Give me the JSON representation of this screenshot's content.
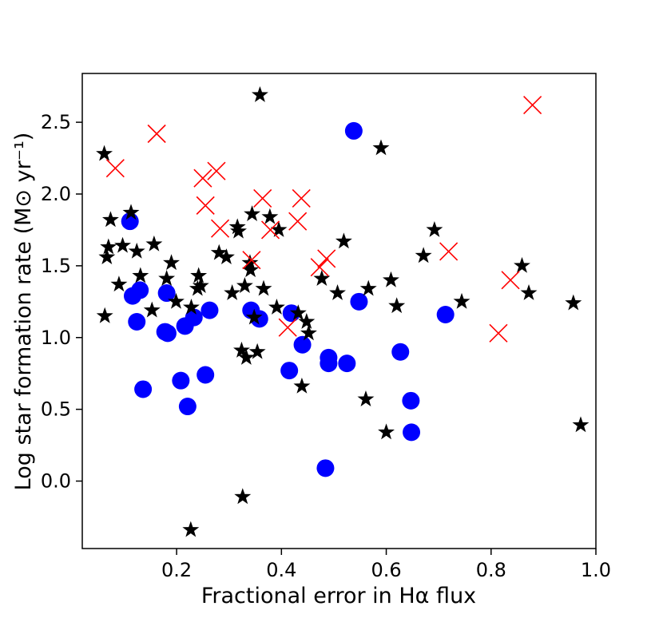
{
  "chart_data": {
    "type": "scatter",
    "xlabel": "Fractional error in Hα flux",
    "ylabel": "Log star formation rate (M⊙ yr⁻¹)",
    "xlim": [
      0.02,
      1.0
    ],
    "ylim": [
      -0.47,
      2.84
    ],
    "x_ticks": [
      0.2,
      0.4,
      0.6,
      0.8,
      1.0
    ],
    "x_tick_labels": [
      "0.2",
      "0.4",
      "0.6",
      "0.8",
      "1.0"
    ],
    "y_ticks": [
      0.0,
      0.5,
      1.0,
      1.5,
      2.0,
      2.5
    ],
    "y_tick_labels": [
      "0.0",
      "0.5",
      "1.0",
      "1.5",
      "2.0",
      "2.5"
    ],
    "grid": false,
    "legend": "none",
    "series": [
      {
        "marker": "circle",
        "color": "#0000ff",
        "points": [
          [
            0.111,
            1.81
          ],
          [
            0.116,
            1.29
          ],
          [
            0.124,
            1.11
          ],
          [
            0.13,
            1.33
          ],
          [
            0.136,
            0.64
          ],
          [
            0.178,
            1.04
          ],
          [
            0.181,
            1.31
          ],
          [
            0.183,
            1.03
          ],
          [
            0.208,
            0.7
          ],
          [
            0.216,
            1.08
          ],
          [
            0.221,
            0.52
          ],
          [
            0.233,
            1.14
          ],
          [
            0.255,
            0.74
          ],
          [
            0.263,
            1.19
          ],
          [
            0.342,
            1.19
          ],
          [
            0.358,
            1.13
          ],
          [
            0.415,
            0.77
          ],
          [
            0.419,
            1.17
          ],
          [
            0.44,
            0.95
          ],
          [
            0.484,
            0.09
          ],
          [
            0.49,
            0.86
          ],
          [
            0.49,
            0.82
          ],
          [
            0.525,
            0.82
          ],
          [
            0.538,
            2.44
          ],
          [
            0.548,
            1.25
          ],
          [
            0.627,
            0.9
          ],
          [
            0.647,
            0.56
          ],
          [
            0.648,
            0.34
          ],
          [
            0.713,
            1.16
          ]
        ]
      },
      {
        "marker": "star",
        "color": "#000000",
        "points": [
          [
            0.062,
            2.28
          ],
          [
            0.063,
            1.15
          ],
          [
            0.067,
            1.56
          ],
          [
            0.07,
            1.63
          ],
          [
            0.074,
            1.82
          ],
          [
            0.09,
            1.37
          ],
          [
            0.097,
            1.64
          ],
          [
            0.113,
            1.87
          ],
          [
            0.124,
            1.6
          ],
          [
            0.131,
            1.43
          ],
          [
            0.153,
            1.19
          ],
          [
            0.157,
            1.65
          ],
          [
            0.181,
            1.41
          ],
          [
            0.19,
            1.52
          ],
          [
            0.199,
            1.25
          ],
          [
            0.227,
            -0.34
          ],
          [
            0.228,
            1.21
          ],
          [
            0.24,
            1.34
          ],
          [
            0.242,
            1.43
          ],
          [
            0.246,
            1.36
          ],
          [
            0.281,
            1.59
          ],
          [
            0.295,
            1.56
          ],
          [
            0.306,
            1.31
          ],
          [
            0.316,
            1.77
          ],
          [
            0.318,
            1.74
          ],
          [
            0.324,
            0.91
          ],
          [
            0.326,
            -0.11
          ],
          [
            0.33,
            1.36
          ],
          [
            0.333,
            0.86
          ],
          [
            0.34,
            1.52
          ],
          [
            0.341,
            1.47
          ],
          [
            0.344,
            1.86
          ],
          [
            0.348,
            1.14
          ],
          [
            0.354,
            0.9
          ],
          [
            0.359,
            2.69
          ],
          [
            0.366,
            1.34
          ],
          [
            0.378,
            1.84
          ],
          [
            0.391,
            1.21
          ],
          [
            0.395,
            1.75
          ],
          [
            0.432,
            1.17
          ],
          [
            0.439,
            0.66
          ],
          [
            0.448,
            1.11
          ],
          [
            0.452,
            1.03
          ],
          [
            0.477,
            1.41
          ],
          [
            0.507,
            1.31
          ],
          [
            0.519,
            1.67
          ],
          [
            0.561,
            0.57
          ],
          [
            0.566,
            1.34
          ],
          [
            0.59,
            2.32
          ],
          [
            0.6,
            0.34
          ],
          [
            0.609,
            1.4
          ],
          [
            0.62,
            1.22
          ],
          [
            0.671,
            1.57
          ],
          [
            0.692,
            1.75
          ],
          [
            0.744,
            1.25
          ],
          [
            0.859,
            1.5
          ],
          [
            0.872,
            1.31
          ],
          [
            0.957,
            1.24
          ],
          [
            0.971,
            0.39
          ]
        ]
      },
      {
        "marker": "x",
        "color": "#ff0000",
        "points": [
          [
            0.083,
            2.18
          ],
          [
            0.162,
            2.42
          ],
          [
            0.25,
            2.11
          ],
          [
            0.255,
            1.92
          ],
          [
            0.276,
            2.16
          ],
          [
            0.283,
            1.76
          ],
          [
            0.343,
            1.54
          ],
          [
            0.364,
            1.97
          ],
          [
            0.379,
            1.75
          ],
          [
            0.412,
            1.07
          ],
          [
            0.431,
            1.81
          ],
          [
            0.438,
            1.97
          ],
          [
            0.473,
            1.49
          ],
          [
            0.486,
            1.55
          ],
          [
            0.719,
            1.6
          ],
          [
            0.814,
            1.03
          ],
          [
            0.837,
            1.4
          ],
          [
            0.879,
            2.62
          ]
        ]
      }
    ]
  }
}
